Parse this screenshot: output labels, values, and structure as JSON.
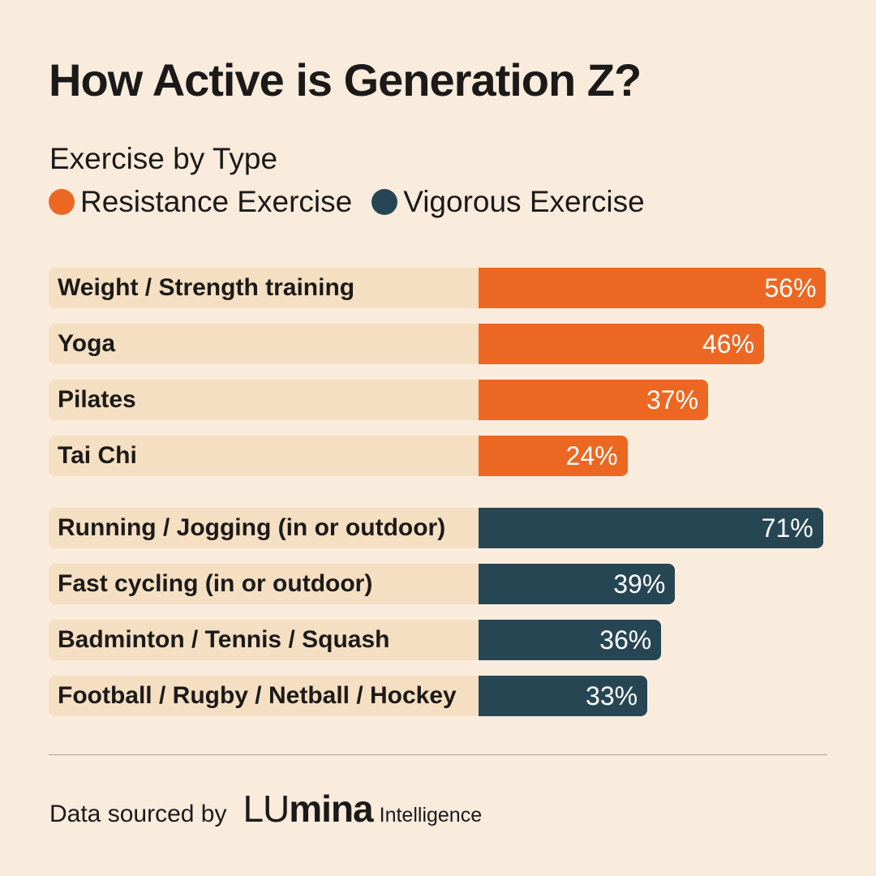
{
  "colors": {
    "background": "#f9ecdd",
    "track": "#f5dfc2",
    "resistance": "#ec6822",
    "vigorous": "#264653",
    "text": "#1c1a19"
  },
  "footer": {
    "text": "Data sourced by",
    "brand_light": "LU",
    "brand_bold": "mina",
    "brand_sub": "Intelligence"
  },
  "chart_data": {
    "type": "bar",
    "orientation": "horizontal",
    "title": "How Active is Generation Z?",
    "subtitle": "Exercise by Type",
    "legend": [
      {
        "name": "Resistance Exercise",
        "color": "#ec6822"
      },
      {
        "name": "Vigorous Exercise",
        "color": "#264653"
      }
    ],
    "legend_placement": "top-left",
    "unit": "%",
    "series": [
      {
        "name": "Resistance Exercise",
        "color": "#ec6822",
        "categories": [
          "Weight / Strength training",
          "Yoga",
          "Pilates",
          "Tai Chi"
        ],
        "values": [
          56,
          46,
          37,
          24
        ],
        "labels": [
          "56%",
          "46%",
          "37%",
          "24%"
        ]
      },
      {
        "name": "Vigorous Exercise",
        "color": "#264653",
        "categories": [
          "Running / Jogging (in or outdoor)",
          "Fast cycling (in or outdoor)",
          "Badminton / Tennis / Squash",
          "Football / Rugby / Netball / Hockey"
        ],
        "values": [
          71,
          39,
          36,
          33
        ],
        "labels": [
          "71%",
          "39%",
          "36%",
          "33%"
        ]
      }
    ],
    "grid": false
  }
}
